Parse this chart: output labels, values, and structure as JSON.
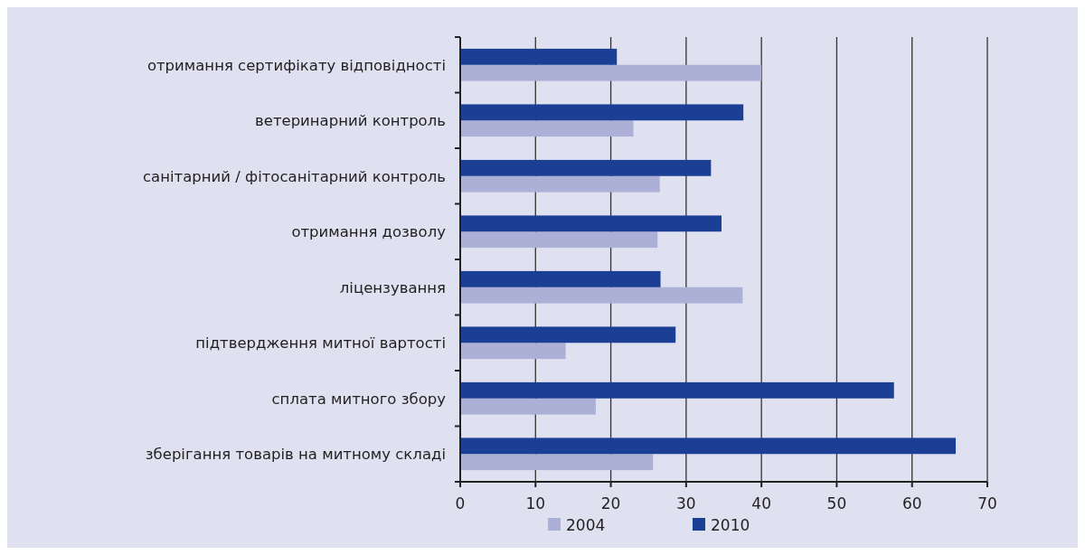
{
  "chart_data": {
    "type": "bar",
    "orientation": "horizontal",
    "categories": [
      "отримання сертифікату відповідності",
      "ветеринарний контроль",
      "санітарний / фітосанітарний контроль",
      "отримання дозволу",
      "ліцензування",
      "підтвердження митної вартості",
      "сплата митного збору",
      "зберігання товарів на митному складі"
    ],
    "series": [
      {
        "name": "2004",
        "color": "#acafd6",
        "values": [
          40.0,
          23.0,
          26.5,
          26.2,
          37.5,
          14.0,
          18.0,
          25.6
        ]
      },
      {
        "name": "2010",
        "color": "#1b3f95",
        "values": [
          20.8,
          37.6,
          33.3,
          34.7,
          26.6,
          28.6,
          57.6,
          65.8
        ]
      }
    ],
    "xlim": [
      0,
      70
    ],
    "xticks": [
      0,
      10,
      20,
      30,
      40,
      50,
      60,
      70
    ],
    "grid": "x",
    "legend": "bottom"
  }
}
